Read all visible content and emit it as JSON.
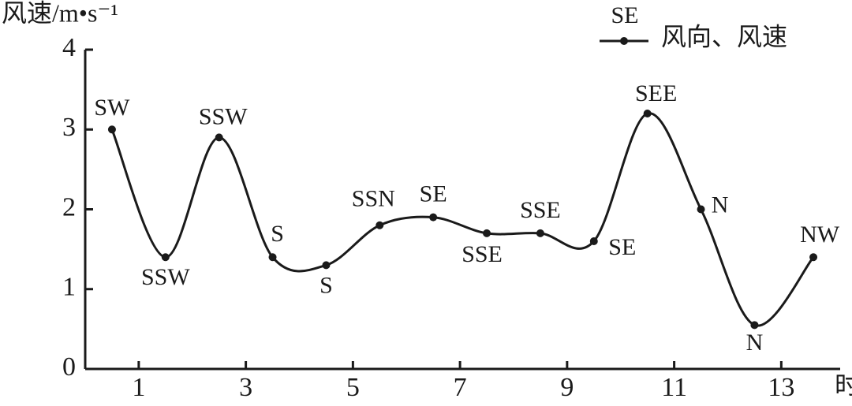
{
  "chart_data": {
    "type": "line",
    "y_label": "风速/m•s⁻¹",
    "x_label": "时",
    "legend_sample_label": "SE",
    "x": [
      0.5,
      1.5,
      2.5,
      3.5,
      4.5,
      5.5,
      6.5,
      7.5,
      8.5,
      9.5,
      10.5,
      11.5,
      12.5,
      13.6
    ],
    "series": [
      {
        "name": "风向、风速",
        "color": "#1a1a1a",
        "values": [
          3.0,
          1.4,
          2.9,
          1.4,
          1.3,
          1.8,
          1.9,
          1.7,
          1.7,
          1.6,
          3.2,
          2.0,
          0.55,
          1.4
        ],
        "directions": [
          "SW",
          "SSW",
          "SSW",
          "S",
          "S",
          "SSN",
          "SE",
          "SSE",
          "SSE",
          "SE",
          "SEE",
          "N",
          "N",
          "NW"
        ]
      }
    ],
    "xlim": [
      0,
      14.1
    ],
    "ylim": [
      0,
      4
    ],
    "xticks": [
      1,
      3,
      5,
      7,
      9,
      11,
      13
    ],
    "yticks": [
      0,
      1,
      2,
      3,
      4
    ],
    "grid": false
  }
}
